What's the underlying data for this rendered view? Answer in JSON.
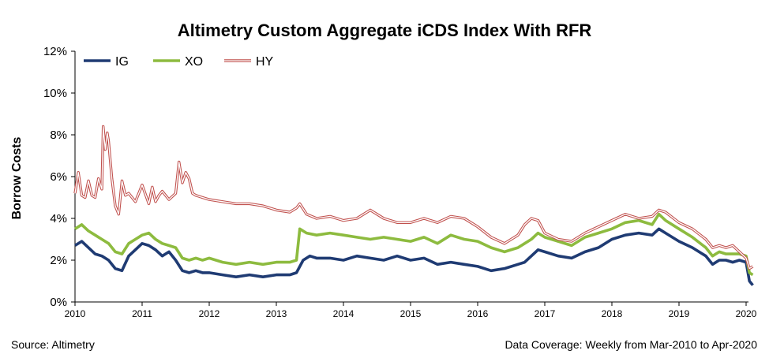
{
  "chart_data": {
    "type": "line",
    "title": "Altimetry Custom Aggregate iCDS Index With RFR",
    "ylabel": "Borrow Costs",
    "xlabel": "",
    "ylim": [
      0,
      12
    ],
    "xlim": [
      2010,
      2020
    ],
    "y_ticks": [
      "0%",
      "2%",
      "4%",
      "6%",
      "8%",
      "10%",
      "12%"
    ],
    "y_tick_values": [
      0,
      2,
      4,
      6,
      8,
      10,
      12
    ],
    "x_ticks": [
      "2010",
      "2011",
      "2012",
      "2013",
      "2014",
      "2015",
      "2016",
      "2017",
      "2018",
      "2019",
      "2020"
    ],
    "x_tick_values": [
      2010,
      2011,
      2012,
      2013,
      2014,
      2015,
      2016,
      2017,
      2018,
      2019,
      2020
    ],
    "grid": false,
    "legend_position": "top-left",
    "series": [
      {
        "name": "IG",
        "color": "#1f3b73",
        "style": "solid",
        "x": [
          2010.0,
          2010.1,
          2010.2,
          2010.3,
          2010.4,
          2010.5,
          2010.6,
          2010.7,
          2010.8,
          2010.9,
          2011.0,
          2011.1,
          2011.2,
          2011.3,
          2011.4,
          2011.5,
          2011.6,
          2011.7,
          2011.8,
          2011.9,
          2012.0,
          2012.2,
          2012.4,
          2012.6,
          2012.8,
          2013.0,
          2013.2,
          2013.3,
          2013.4,
          2013.5,
          2013.6,
          2013.8,
          2014.0,
          2014.2,
          2014.4,
          2014.6,
          2014.8,
          2015.0,
          2015.2,
          2015.4,
          2015.6,
          2015.8,
          2016.0,
          2016.2,
          2016.4,
          2016.6,
          2016.7,
          2016.8,
          2016.9,
          2017.0,
          2017.2,
          2017.4,
          2017.6,
          2017.8,
          2018.0,
          2018.2,
          2018.4,
          2018.6,
          2018.7,
          2018.8,
          2019.0,
          2019.2,
          2019.4,
          2019.5,
          2019.6,
          2019.7,
          2019.8,
          2019.9,
          2020.0,
          2020.05,
          2020.1
        ],
        "y": [
          2.7,
          2.9,
          2.6,
          2.3,
          2.2,
          2.0,
          1.6,
          1.5,
          2.2,
          2.5,
          2.8,
          2.7,
          2.5,
          2.2,
          2.4,
          2.0,
          1.5,
          1.4,
          1.5,
          1.4,
          1.4,
          1.3,
          1.2,
          1.3,
          1.2,
          1.3,
          1.3,
          1.4,
          2.0,
          2.2,
          2.1,
          2.1,
          2.0,
          2.2,
          2.1,
          2.0,
          2.2,
          2.0,
          2.1,
          1.8,
          1.9,
          1.8,
          1.7,
          1.5,
          1.6,
          1.8,
          1.9,
          2.2,
          2.5,
          2.4,
          2.2,
          2.1,
          2.4,
          2.6,
          3.0,
          3.2,
          3.3,
          3.2,
          3.5,
          3.3,
          2.9,
          2.6,
          2.2,
          1.8,
          2.0,
          2.0,
          1.9,
          2.0,
          1.9,
          1.0,
          0.8
        ]
      },
      {
        "name": "XO",
        "color": "#8dbb3f",
        "style": "solid",
        "x": [
          2010.0,
          2010.1,
          2010.2,
          2010.3,
          2010.4,
          2010.5,
          2010.6,
          2010.7,
          2010.8,
          2010.9,
          2011.0,
          2011.1,
          2011.2,
          2011.3,
          2011.4,
          2011.5,
          2011.6,
          2011.7,
          2011.8,
          2011.9,
          2012.0,
          2012.2,
          2012.4,
          2012.6,
          2012.8,
          2013.0,
          2013.2,
          2013.3,
          2013.35,
          2013.45,
          2013.6,
          2013.8,
          2014.0,
          2014.2,
          2014.4,
          2014.6,
          2014.8,
          2015.0,
          2015.2,
          2015.4,
          2015.6,
          2015.8,
          2016.0,
          2016.2,
          2016.4,
          2016.6,
          2016.7,
          2016.8,
          2016.9,
          2017.0,
          2017.2,
          2017.4,
          2017.6,
          2017.8,
          2018.0,
          2018.2,
          2018.4,
          2018.6,
          2018.7,
          2018.8,
          2019.0,
          2019.2,
          2019.4,
          2019.5,
          2019.6,
          2019.7,
          2019.8,
          2019.9,
          2020.0,
          2020.05,
          2020.1
        ],
        "y": [
          3.5,
          3.7,
          3.4,
          3.2,
          3.0,
          2.8,
          2.4,
          2.3,
          2.8,
          3.0,
          3.2,
          3.3,
          3.0,
          2.8,
          2.7,
          2.6,
          2.1,
          2.0,
          2.1,
          2.0,
          2.1,
          1.9,
          1.8,
          1.9,
          1.8,
          1.9,
          1.9,
          2.0,
          3.5,
          3.3,
          3.2,
          3.3,
          3.2,
          3.1,
          3.0,
          3.1,
          3.0,
          2.9,
          3.1,
          2.8,
          3.2,
          3.0,
          2.9,
          2.6,
          2.4,
          2.6,
          2.8,
          3.0,
          3.3,
          3.1,
          2.9,
          2.7,
          3.1,
          3.3,
          3.5,
          3.8,
          3.9,
          3.7,
          4.2,
          3.9,
          3.5,
          3.1,
          2.6,
          2.2,
          2.4,
          2.3,
          2.3,
          2.3,
          2.2,
          1.4,
          1.3
        ]
      },
      {
        "name": "HY",
        "color": "#c0504d",
        "style": "double",
        "x": [
          2010.0,
          2010.05,
          2010.1,
          2010.15,
          2010.2,
          2010.25,
          2010.3,
          2010.35,
          2010.4,
          2010.42,
          2010.45,
          2010.48,
          2010.5,
          2010.55,
          2010.6,
          2010.65,
          2010.7,
          2010.75,
          2010.8,
          2010.9,
          2011.0,
          2011.1,
          2011.15,
          2011.2,
          2011.25,
          2011.3,
          2011.4,
          2011.5,
          2011.55,
          2011.6,
          2011.65,
          2011.7,
          2011.75,
          2011.8,
          2011.9,
          2012.0,
          2012.2,
          2012.4,
          2012.6,
          2012.8,
          2013.0,
          2013.2,
          2013.3,
          2013.35,
          2013.45,
          2013.6,
          2013.8,
          2014.0,
          2014.2,
          2014.4,
          2014.6,
          2014.8,
          2015.0,
          2015.2,
          2015.4,
          2015.6,
          2015.8,
          2016.0,
          2016.2,
          2016.4,
          2016.6,
          2016.7,
          2016.8,
          2016.9,
          2017.0,
          2017.2,
          2017.4,
          2017.6,
          2017.8,
          2018.0,
          2018.2,
          2018.4,
          2018.6,
          2018.7,
          2018.8,
          2019.0,
          2019.2,
          2019.4,
          2019.5,
          2019.6,
          2019.7,
          2019.8,
          2019.9,
          2020.0,
          2020.05,
          2020.1
        ],
        "y": [
          5.2,
          6.2,
          5.1,
          5.0,
          5.8,
          5.1,
          5.0,
          5.9,
          5.4,
          8.4,
          7.3,
          8.1,
          7.7,
          5.9,
          4.6,
          4.2,
          5.8,
          5.1,
          5.2,
          4.8,
          5.6,
          4.7,
          5.5,
          4.8,
          5.1,
          5.3,
          4.9,
          5.2,
          6.7,
          5.7,
          6.2,
          5.9,
          5.2,
          5.1,
          5.0,
          4.9,
          4.8,
          4.7,
          4.7,
          4.6,
          4.4,
          4.3,
          4.5,
          4.7,
          4.2,
          4.0,
          4.1,
          3.9,
          4.0,
          4.4,
          4.0,
          3.8,
          3.8,
          4.0,
          3.8,
          4.1,
          4.0,
          3.6,
          3.1,
          2.8,
          3.2,
          3.7,
          4.0,
          3.9,
          3.3,
          3.0,
          2.9,
          3.3,
          3.6,
          3.9,
          4.2,
          4.0,
          4.1,
          4.4,
          4.3,
          3.8,
          3.5,
          3.0,
          2.6,
          2.7,
          2.6,
          2.7,
          2.4,
          2.1,
          1.6,
          1.7
        ]
      }
    ]
  },
  "source_note": "Source: Altimetry",
  "coverage_note": "Data Coverage: Weekly from Mar-2010 to Apr-2020"
}
